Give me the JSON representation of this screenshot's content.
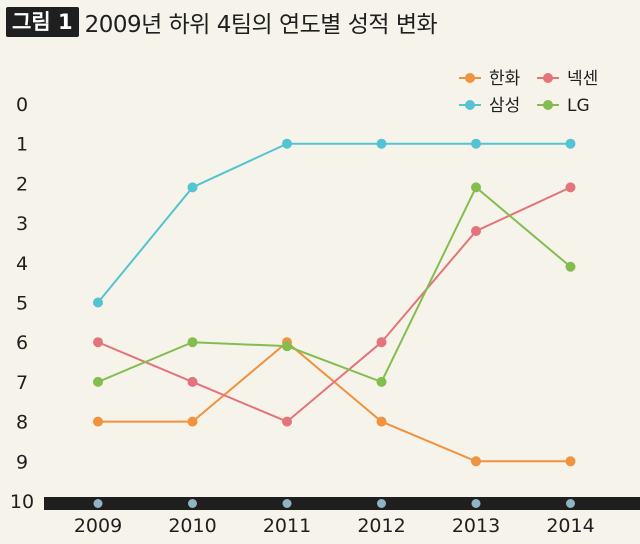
{
  "figure": {
    "badge": "그림 1",
    "title": "2009년 하위 4팀의 연도별 성적 변화"
  },
  "chart_data": {
    "type": "line",
    "x": [
      "2009",
      "2010",
      "2011",
      "2012",
      "2013",
      "2014"
    ],
    "y_ticks": [
      "0",
      "1",
      "2",
      "3",
      "4",
      "5",
      "6",
      "7",
      "8",
      "9",
      "10"
    ],
    "ylim": [
      0,
      10
    ],
    "y_inverted": true,
    "grid": false,
    "legend_position": "top-right",
    "series": [
      {
        "name": "한화",
        "color": "#f0923e",
        "values": [
          8,
          8,
          6,
          8,
          9,
          9
        ]
      },
      {
        "name": "넥센",
        "color": "#e4747c",
        "values": [
          6,
          7,
          8,
          6,
          3.2,
          2.1
        ]
      },
      {
        "name": "삼성",
        "color": "#54c3d2",
        "values": [
          5,
          2.1,
          1,
          1,
          1,
          1
        ]
      },
      {
        "name": "LG",
        "color": "#84bd4f",
        "values": [
          7,
          6,
          6.1,
          7,
          2.1,
          4.1
        ]
      }
    ],
    "baseline_marker_color": "#8fb4c4"
  }
}
